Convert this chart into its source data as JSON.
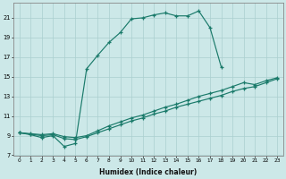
{
  "line_color": "#1a7a6a",
  "bg_color": "#cce8e8",
  "grid_color": "#aacfcf",
  "xlabel": "Humidex (Indice chaleur)",
  "xlim": [
    -0.5,
    23.5
  ],
  "ylim": [
    7,
    22.5
  ],
  "yticks": [
    7,
    9,
    11,
    13,
    15,
    17,
    19,
    21
  ],
  "xticks": [
    0,
    1,
    2,
    3,
    4,
    5,
    6,
    7,
    8,
    9,
    10,
    11,
    12,
    13,
    14,
    15,
    16,
    17,
    18,
    19,
    20,
    21,
    22,
    23
  ],
  "curve_x": [
    0,
    1,
    2,
    3,
    4,
    5,
    6,
    7,
    8,
    9,
    10,
    11,
    12,
    13,
    14,
    15,
    16,
    17,
    18
  ],
  "curve_y": [
    9.3,
    9.1,
    8.8,
    9.0,
    7.9,
    8.2,
    15.8,
    17.2,
    18.5,
    19.5,
    20.9,
    21.0,
    21.3,
    21.5,
    21.2,
    21.2,
    21.7,
    20.0,
    16.0
  ],
  "diag1_x": [
    0,
    1,
    2,
    3,
    4,
    5,
    6,
    7,
    8,
    9,
    10,
    11,
    12,
    13,
    14,
    15,
    16,
    17,
    18,
    19,
    20,
    21,
    22,
    23
  ],
  "diag1_y": [
    9.3,
    9.2,
    9.1,
    9.2,
    8.9,
    8.8,
    9.0,
    9.5,
    10.0,
    10.4,
    10.8,
    11.1,
    11.5,
    11.9,
    12.2,
    12.6,
    13.0,
    13.3,
    13.6,
    14.0,
    14.4,
    14.2,
    14.6,
    14.9
  ],
  "diag2_x": [
    0,
    1,
    2,
    3,
    4,
    5,
    6,
    7,
    8,
    9,
    10,
    11,
    12,
    13,
    14,
    15,
    16,
    17,
    18,
    19,
    20,
    21,
    22,
    23
  ],
  "diag2_y": [
    9.3,
    9.15,
    9.0,
    9.1,
    8.7,
    8.6,
    8.9,
    9.3,
    9.7,
    10.1,
    10.5,
    10.8,
    11.2,
    11.5,
    11.9,
    12.2,
    12.5,
    12.8,
    13.1,
    13.5,
    13.8,
    14.0,
    14.4,
    14.8
  ]
}
